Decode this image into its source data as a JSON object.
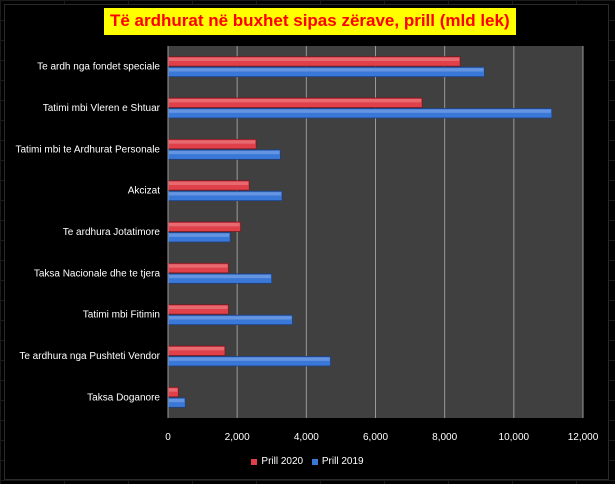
{
  "colors": {
    "background": "#000000",
    "plot_area": "#404040",
    "gridline": "#9a9a9a",
    "title_bg": "#ffff00",
    "title_fg": "#ff0000",
    "text": "#ffffff"
  },
  "chart_data": {
    "type": "bar",
    "orientation": "horizontal",
    "title": "Të ardhurat në buxhet sipas zërave, prill (mld lek)",
    "xlabel": "",
    "ylabel": "",
    "categories": [
      "Te ardh nga fondet speciale",
      "Tatimi mbi Vleren e Shtuar",
      "Tatimi mbi te Ardhurat Personale",
      "Akcizat",
      "Te ardhura Jotatimore",
      "Taksa Nacionale dhe te tjera",
      "Tatimi mbi Fitimin",
      "Te ardhura nga Pushteti Vendor",
      "Taksa Doganore"
    ],
    "series": [
      {
        "name": "Prill 2020",
        "color": "#e0404a",
        "values": [
          8450,
          7350,
          2550,
          2350,
          2100,
          1750,
          1750,
          1650,
          300
        ]
      },
      {
        "name": "Prill 2019",
        "color": "#3a78d8",
        "values": [
          9150,
          11100,
          3250,
          3300,
          1800,
          3000,
          3600,
          4700,
          500
        ]
      }
    ],
    "xlim": [
      0,
      12000
    ],
    "xticks": [
      0,
      2000,
      4000,
      6000,
      8000,
      10000,
      12000
    ],
    "xtick_labels": [
      "0",
      "2,000",
      "4,000",
      "6,000",
      "8,000",
      "10,000",
      "12,000"
    ],
    "grid": true,
    "legend_position": "bottom"
  }
}
